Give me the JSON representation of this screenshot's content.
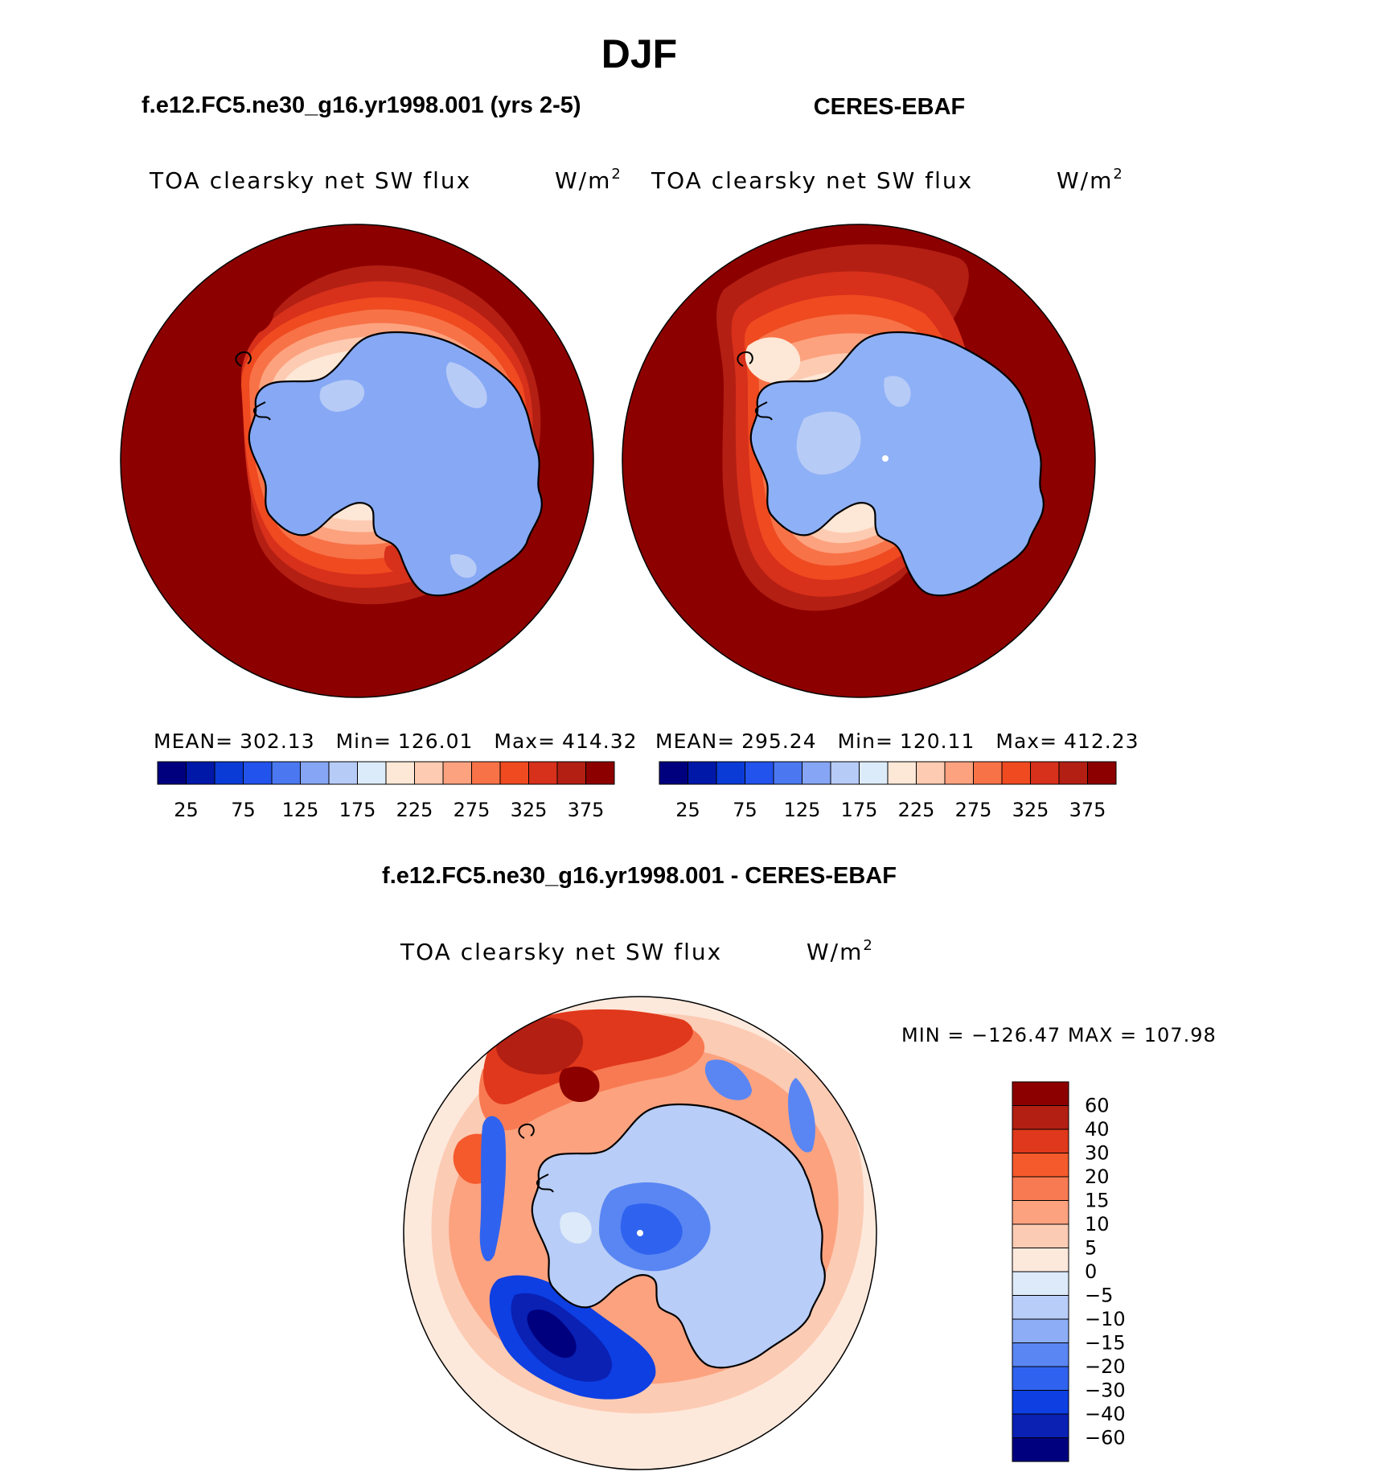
{
  "page": {
    "title": "DJF"
  },
  "colors": {
    "abs_scale": [
      "#00007f",
      "#0018a8",
      "#0b3bd6",
      "#2253ec",
      "#4b78f0",
      "#86a5f4",
      "#b7cbf7",
      "#dcebf9",
      "#fde7d6",
      "#fdcbb2",
      "#fca27f",
      "#f87247",
      "#ef4a20",
      "#d7301b",
      "#b31f13",
      "#8c0000"
    ],
    "diff_scale": [
      "#00007f",
      "#0a21b4",
      "#0d3fe3",
      "#2f63ef",
      "#5a86f3",
      "#8dadf6",
      "#b8cdf8",
      "#dceaf9",
      "#fde9dc",
      "#fccbb4",
      "#fca27f",
      "#f87a52",
      "#f55a2c",
      "#e0381c",
      "#b31f13",
      "#8c0000"
    ],
    "continent_model": "#86a8f5",
    "continent_obs": "#8eb0f6",
    "ocean_far": "#8c0000"
  },
  "panels": [
    {
      "id": "model",
      "case_title": "f.e12.FC5.ne30_g16.yr1998.001 (yrs 2-5)",
      "variable": "TOA clearsky net SW flux",
      "units_base": "W/m",
      "units_exp": "2",
      "stats": {
        "mean_label": "MEAN=",
        "mean": "302.13",
        "min_label": "Min=",
        "min": "126.01",
        "max_label": "Max=",
        "max": "414.32"
      },
      "colorbar_labels": [
        "25",
        "75",
        "125",
        "175",
        "225",
        "275",
        "325",
        "375"
      ]
    },
    {
      "id": "obs",
      "case_title": "CERES-EBAF",
      "variable": "TOA clearsky net SW flux",
      "units_base": "W/m",
      "units_exp": "2",
      "stats": {
        "mean_label": "MEAN=",
        "mean": "295.24",
        "min_label": "Min=",
        "min": "120.11",
        "max_label": "Max=",
        "max": "412.23"
      },
      "colorbar_labels": [
        "25",
        "75",
        "125",
        "175",
        "225",
        "275",
        "325",
        "375"
      ]
    }
  ],
  "diff_panel": {
    "case_title": "f.e12.FC5.ne30_g16.yr1998.001 - CERES-EBAF",
    "variable": "TOA clearsky net SW flux",
    "units_base": "W/m",
    "units_exp": "2",
    "minmax": "MIN = −126.47 MAX = 107.98",
    "colorbar_labels": [
      "60",
      "40",
      "30",
      "20",
      "15",
      "10",
      "5",
      "0",
      "−5",
      "−10",
      "−15",
      "−20",
      "−30",
      "−40",
      "−60"
    ]
  },
  "chart_data": [
    {
      "type": "heatmap",
      "projection": "south-polar-stereographic",
      "title": "f.e12.FC5.ne30_g16.yr1998.001 (yrs 2-5)",
      "variable": "TOA clearsky net SW flux",
      "units": "W/m2",
      "mean": 302.13,
      "min": 126.01,
      "max": 414.32,
      "levels": [
        25,
        50,
        75,
        100,
        125,
        150,
        175,
        200,
        225,
        250,
        275,
        300,
        325,
        350,
        375
      ],
      "colorbar_ticks": [
        25,
        75,
        125,
        175,
        225,
        275,
        325,
        375
      ]
    },
    {
      "type": "heatmap",
      "projection": "south-polar-stereographic",
      "title": "CERES-EBAF",
      "variable": "TOA clearsky net SW flux",
      "units": "W/m2",
      "mean": 295.24,
      "min": 120.11,
      "max": 412.23,
      "levels": [
        25,
        50,
        75,
        100,
        125,
        150,
        175,
        200,
        225,
        250,
        275,
        300,
        325,
        350,
        375
      ],
      "colorbar_ticks": [
        25,
        75,
        125,
        175,
        225,
        275,
        325,
        375
      ]
    },
    {
      "type": "heatmap",
      "projection": "south-polar-stereographic",
      "title": "f.e12.FC5.ne30_g16.yr1998.001 - CERES-EBAF",
      "variable": "TOA clearsky net SW flux",
      "units": "W/m2",
      "min": -126.47,
      "max": 107.98,
      "levels": [
        60,
        40,
        30,
        20,
        15,
        10,
        5,
        0,
        -5,
        -10,
        -15,
        -20,
        -30,
        -40,
        -60
      ]
    }
  ]
}
